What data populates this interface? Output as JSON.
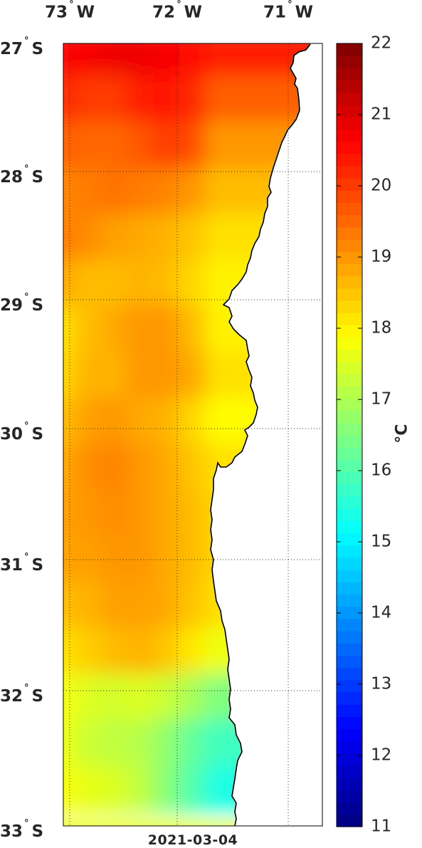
{
  "map": {
    "lon_labels": [
      {
        "label": "73",
        "suffix": "W"
      },
      {
        "label": "72",
        "suffix": "W"
      },
      {
        "label": "71",
        "suffix": "W"
      }
    ],
    "lat_labels": [
      {
        "label": "27",
        "suffix": "S"
      },
      {
        "label": "28",
        "suffix": "S"
      },
      {
        "label": "29",
        "suffix": "S"
      },
      {
        "label": "30",
        "suffix": "S"
      },
      {
        "label": "31",
        "suffix": "S"
      },
      {
        "label": "32",
        "suffix": "S"
      },
      {
        "label": "33",
        "suffix": "S"
      }
    ],
    "degree_symbol": "°",
    "date": "2021-03-04"
  },
  "colorbar": {
    "min": 11,
    "max": 22,
    "ticks": [
      "22",
      "21",
      "20",
      "19",
      "18",
      "17",
      "16",
      "15",
      "14",
      "13",
      "12",
      "11"
    ],
    "unit": "°C",
    "colormap": "jet"
  },
  "colors": {
    "land": "#ffffff",
    "coastline": "#000000",
    "grid": "#333333"
  }
}
